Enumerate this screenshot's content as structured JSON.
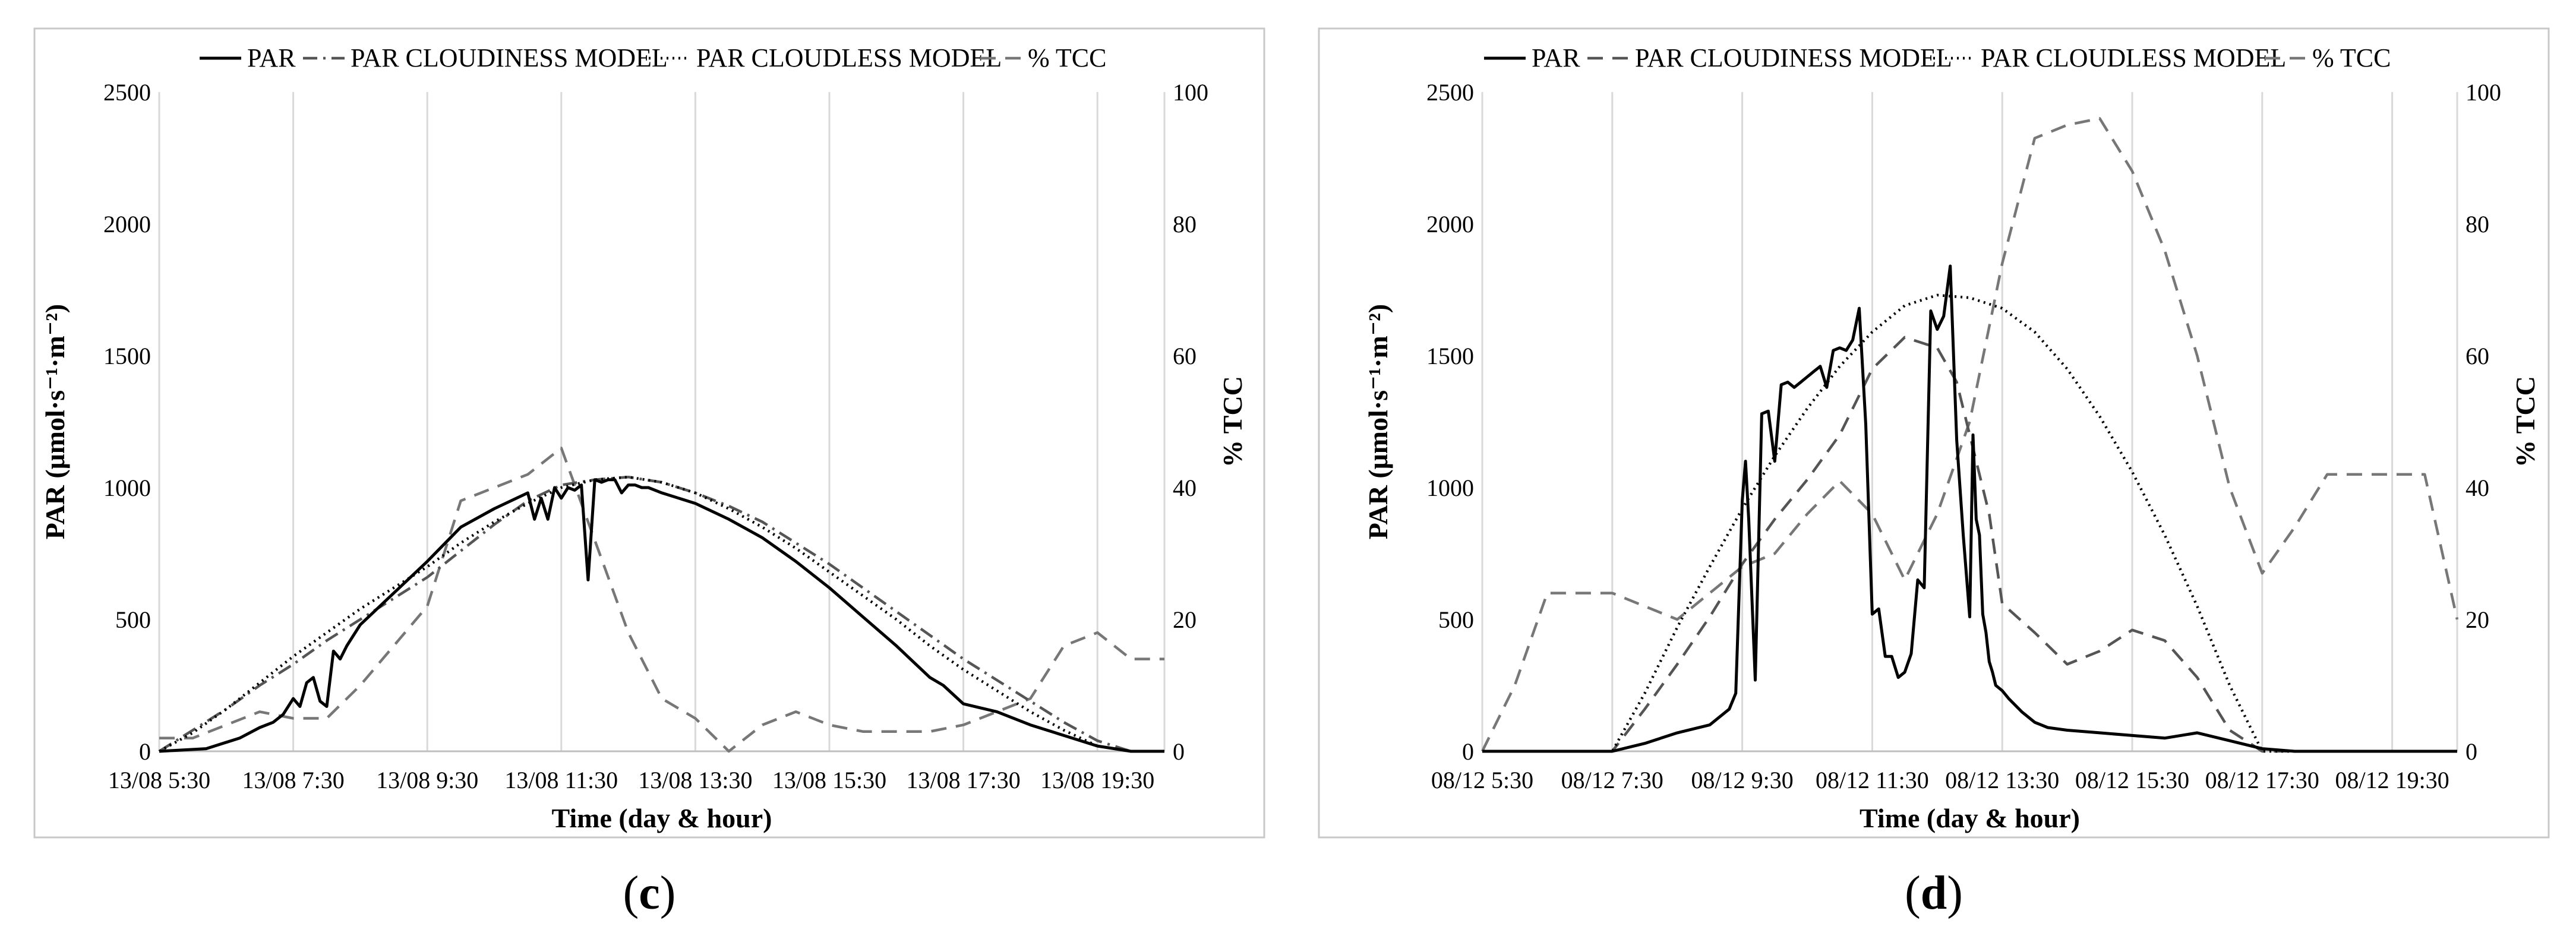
{
  "chart_data": [
    {
      "type": "line",
      "panel_label_prefix": "(",
      "panel_label_letter": "c",
      "panel_label_suffix": ")",
      "xlabel": "Time (day & hour)",
      "ylabel": "PAR (μmol·s⁻¹·m⁻²)",
      "y2label": "% TCC",
      "ylim": [
        0,
        2500
      ],
      "y2lim": [
        0,
        100
      ],
      "xlim": [
        5.5,
        20.5
      ],
      "yticks": [
        "0",
        "500",
        "1000",
        "1500",
        "2000",
        "2500"
      ],
      "y2ticks": [
        "0",
        "20",
        "40",
        "60",
        "80",
        "100"
      ],
      "xticks": [
        {
          "x": 5.5,
          "label": "13/08 5:30"
        },
        {
          "x": 7.5,
          "label": "13/08 7:30"
        },
        {
          "x": 9.5,
          "label": "13/08 9:30"
        },
        {
          "x": 11.5,
          "label": "13/08 11:30"
        },
        {
          "x": 13.5,
          "label": "13/08 13:30"
        },
        {
          "x": 15.5,
          "label": "13/08 15:30"
        },
        {
          "x": 17.5,
          "label": "13/08 17:30"
        },
        {
          "x": 19.5,
          "label": "13/08 19:30"
        }
      ],
      "grid": "vertical",
      "legend_position": "top",
      "legend": [
        "PAR",
        "PAR CLOUDINESS MODEL",
        "PAR CLOUDLESS MODEL",
        "% TCC"
      ],
      "series": [
        {
          "name": "PAR",
          "axis": "left",
          "style": "solid",
          "color": "#000000",
          "x": [
            5.5,
            6.2,
            6.7,
            7.0,
            7.2,
            7.35,
            7.5,
            7.6,
            7.7,
            7.8,
            7.9,
            8.0,
            8.1,
            8.2,
            8.3,
            8.5,
            9.0,
            9.5,
            10.0,
            10.5,
            11.0,
            11.1,
            11.2,
            11.3,
            11.4,
            11.5,
            11.6,
            11.7,
            11.8,
            11.9,
            12.0,
            12.1,
            12.2,
            12.3,
            12.4,
            12.5,
            12.6,
            12.7,
            12.8,
            13.0,
            13.5,
            14.0,
            14.5,
            15.0,
            15.5,
            16.0,
            16.5,
            17.0,
            17.2,
            17.5,
            18.0,
            18.5,
            19.0,
            19.5,
            20.0,
            20.5
          ],
          "y": [
            0,
            10,
            50,
            90,
            110,
            140,
            200,
            170,
            260,
            280,
            190,
            170,
            380,
            350,
            400,
            480,
            600,
            720,
            850,
            920,
            980,
            880,
            960,
            880,
            1000,
            960,
            1000,
            990,
            1010,
            650,
            1030,
            1020,
            1030,
            1030,
            980,
            1010,
            1010,
            1000,
            1000,
            980,
            940,
            880,
            810,
            720,
            620,
            510,
            400,
            280,
            250,
            180,
            150,
            100,
            60,
            20,
            0,
            0
          ]
        },
        {
          "name": "PAR CLOUDINESS MODEL",
          "axis": "left",
          "style": "dash-dot",
          "color": "#555555",
          "x": [
            5.5,
            6.0,
            6.5,
            7.0,
            7.5,
            8.0,
            8.5,
            9.0,
            9.5,
            10.0,
            10.5,
            11.0,
            11.5,
            12.0,
            12.5,
            13.0,
            13.5,
            14.0,
            14.5,
            15.0,
            15.5,
            16.0,
            16.5,
            17.0,
            17.5,
            18.0,
            18.5,
            19.0,
            19.5,
            20.0,
            20.5
          ],
          "y": [
            0,
            80,
            160,
            250,
            330,
            420,
            500,
            580,
            660,
            760,
            860,
            950,
            1010,
            1030,
            1040,
            1020,
            980,
            930,
            870,
            790,
            710,
            620,
            530,
            440,
            350,
            270,
            190,
            110,
            40,
            0,
            0
          ]
        },
        {
          "name": "PAR CLOUDLESS MODEL",
          "axis": "left",
          "style": "dotted",
          "color": "#000000",
          "x": [
            5.5,
            6.0,
            6.5,
            7.0,
            7.5,
            8.0,
            8.5,
            9.0,
            9.5,
            10.0,
            10.5,
            11.0,
            11.5,
            12.0,
            12.5,
            13.0,
            13.5,
            14.0,
            14.5,
            15.0,
            15.5,
            16.0,
            16.5,
            17.0,
            17.5,
            18.0,
            18.5,
            19.0,
            19.5,
            20.0,
            20.5
          ],
          "y": [
            0,
            70,
            160,
            260,
            360,
            450,
            540,
            620,
            700,
            790,
            870,
            940,
            1000,
            1030,
            1040,
            1020,
            980,
            920,
            850,
            770,
            680,
            590,
            500,
            400,
            310,
            230,
            150,
            80,
            20,
            0,
            0
          ]
        },
        {
          "name": "% TCC",
          "axis": "right",
          "style": "dashed",
          "color": "#777777",
          "x": [
            5.5,
            6.0,
            6.5,
            7.0,
            7.5,
            8.0,
            8.5,
            9.0,
            9.5,
            10.0,
            10.5,
            11.0,
            11.5,
            12.0,
            12.5,
            13.0,
            13.5,
            14.0,
            14.5,
            15.0,
            15.5,
            16.0,
            16.5,
            17.0,
            17.5,
            18.0,
            18.5,
            19.0,
            19.5,
            20.0,
            20.5
          ],
          "y": [
            2,
            2,
            4,
            6,
            5,
            5,
            10,
            16,
            22,
            38,
            40,
            42,
            46,
            32,
            18,
            8,
            5,
            0,
            4,
            6,
            4,
            3,
            3,
            3,
            4,
            6,
            8,
            16,
            18,
            14,
            14
          ]
        }
      ]
    },
    {
      "type": "line",
      "panel_label_prefix": "(",
      "panel_label_letter": "d",
      "panel_label_suffix": ")",
      "xlabel": "Time (day & hour)",
      "ylabel": "PAR (μmol·s⁻¹·m⁻²)",
      "y2label": "% TCC",
      "ylim": [
        0,
        2500
      ],
      "y2lim": [
        0,
        100
      ],
      "xlim": [
        5.5,
        20.5
      ],
      "yticks": [
        "0",
        "500",
        "1000",
        "1500",
        "2000",
        "2500"
      ],
      "y2ticks": [
        "0",
        "20",
        "40",
        "60",
        "80",
        "100"
      ],
      "xticks": [
        {
          "x": 5.5,
          "label": "08/12 5:30"
        },
        {
          "x": 7.5,
          "label": "08/12 7:30"
        },
        {
          "x": 9.5,
          "label": "08/12 9:30"
        },
        {
          "x": 11.5,
          "label": "08/12 11:30"
        },
        {
          "x": 13.5,
          "label": "08/12 13:30"
        },
        {
          "x": 15.5,
          "label": "08/12 15:30"
        },
        {
          "x": 17.5,
          "label": "08/12 17:30"
        },
        {
          "x": 19.5,
          "label": "08/12 19:30"
        }
      ],
      "grid": "vertical",
      "legend_position": "top",
      "legend": [
        "PAR",
        "PAR CLOUDINESS MODEL",
        "PAR CLOUDLESS MODEL",
        "% TCC"
      ],
      "series": [
        {
          "name": "PAR",
          "axis": "left",
          "style": "solid",
          "color": "#000000",
          "x": [
            5.5,
            7.5,
            8.0,
            8.5,
            9.0,
            9.2,
            9.3,
            9.4,
            9.5,
            9.55,
            9.6,
            9.7,
            9.8,
            9.9,
            10.0,
            10.1,
            10.2,
            10.3,
            10.4,
            10.5,
            10.6,
            10.7,
            10.8,
            10.9,
            11.0,
            11.1,
            11.2,
            11.3,
            11.4,
            11.5,
            11.6,
            11.7,
            11.8,
            11.9,
            12.0,
            12.1,
            12.2,
            12.3,
            12.4,
            12.5,
            12.6,
            12.7,
            12.8,
            12.9,
            13.0,
            13.05,
            13.1,
            13.15,
            13.2,
            13.25,
            13.3,
            13.35,
            13.4,
            13.5,
            13.6,
            13.8,
            14.0,
            14.2,
            14.5,
            15.0,
            15.5,
            16.0,
            16.5,
            17.0,
            17.5,
            18.0,
            18.5,
            19.0,
            19.5,
            20.0,
            20.5
          ],
          "y": [
            0,
            0,
            30,
            70,
            100,
            140,
            160,
            220,
            950,
            1100,
            880,
            270,
            1280,
            1290,
            1100,
            1390,
            1400,
            1380,
            1400,
            1420,
            1440,
            1460,
            1380,
            1520,
            1530,
            1520,
            1560,
            1680,
            1240,
            520,
            540,
            360,
            360,
            280,
            300,
            370,
            650,
            620,
            1670,
            1600,
            1650,
            1840,
            1180,
            820,
            510,
            1200,
            880,
            820,
            520,
            450,
            340,
            300,
            250,
            230,
            200,
            150,
            110,
            90,
            80,
            70,
            60,
            50,
            70,
            40,
            10,
            0,
            0,
            0,
            0,
            0,
            0
          ]
        },
        {
          "name": "PAR CLOUDINESS MODEL",
          "axis": "left",
          "style": "dashed",
          "color": "#555555",
          "x": [
            5.5,
            7.5,
            8.0,
            8.5,
            9.0,
            9.5,
            10.0,
            10.5,
            11.0,
            11.5,
            12.0,
            12.5,
            12.8,
            13.0,
            13.3,
            13.5,
            14.0,
            14.5,
            15.0,
            15.5,
            16.0,
            16.5,
            17.0,
            17.5,
            18.0,
            18.5,
            19.0,
            19.5,
            20.0,
            20.5
          ],
          "y": [
            0,
            0,
            160,
            330,
            510,
            710,
            880,
            1030,
            1200,
            1450,
            1570,
            1530,
            1400,
            1200,
            900,
            560,
            450,
            330,
            380,
            460,
            420,
            280,
            80,
            0,
            0,
            0,
            0,
            0,
            0,
            0
          ]
        },
        {
          "name": "PAR CLOUDLESS MODEL",
          "axis": "left",
          "style": "dotted",
          "color": "#000000",
          "x": [
            5.5,
            7.5,
            8.0,
            8.5,
            9.0,
            9.5,
            10.0,
            10.5,
            11.0,
            11.5,
            12.0,
            12.5,
            13.0,
            13.5,
            14.0,
            14.5,
            15.0,
            15.5,
            16.0,
            16.5,
            17.0,
            17.5,
            18.0,
            18.5,
            19.0,
            19.5,
            20.0,
            20.5
          ],
          "y": [
            0,
            0,
            220,
            470,
            700,
            920,
            1120,
            1300,
            1460,
            1590,
            1690,
            1730,
            1720,
            1680,
            1590,
            1450,
            1270,
            1060,
            820,
            550,
            250,
            0,
            0,
            0,
            0,
            0,
            0,
            0
          ]
        },
        {
          "name": "% TCC",
          "axis": "right",
          "style": "dashed",
          "color": "#777777",
          "x": [
            5.5,
            6.0,
            6.5,
            7.0,
            7.5,
            8.0,
            8.5,
            9.0,
            9.5,
            10.0,
            10.5,
            11.0,
            11.5,
            12.0,
            12.5,
            13.0,
            13.5,
            14.0,
            14.5,
            15.0,
            15.5,
            16.0,
            16.5,
            17.0,
            17.5,
            18.0,
            18.5,
            19.0,
            19.5,
            20.0,
            20.5
          ],
          "y": [
            0,
            10,
            24,
            24,
            24,
            22,
            20,
            24,
            28,
            30,
            36,
            41,
            36,
            26,
            36,
            50,
            74,
            93,
            95,
            96,
            88,
            76,
            60,
            40,
            27,
            34,
            42,
            42,
            42,
            42,
            20
          ]
        }
      ]
    }
  ]
}
